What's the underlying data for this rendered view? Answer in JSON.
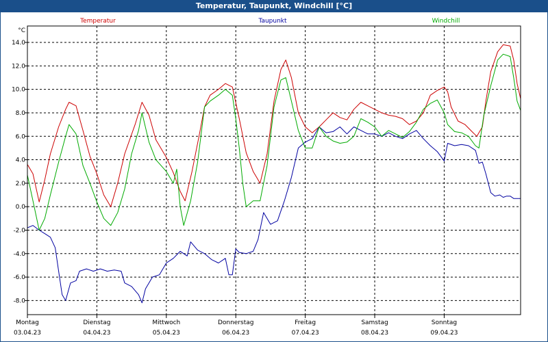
{
  "window": {
    "title": "Temperatur, Taupunkt, Windchill [°C]"
  },
  "chart_data": {
    "type": "line",
    "title": "Temperatur, Taupunkt, Windchill [°C]",
    "ylabel": "°C",
    "ylim": [
      -9.2,
      15.4
    ],
    "yticks": [
      14.0,
      12.0,
      10.0,
      8.0,
      6.0,
      4.0,
      2.0,
      0.0,
      -2.0,
      -4.0,
      -6.0,
      -8.0
    ],
    "ytick_labels": [
      "14.0",
      "12.0",
      "10.0",
      "8.0",
      "6.0",
      "4.0",
      "2.0",
      "0.0",
      "-2.0",
      "-4.0",
      "-6.0",
      "-8.0"
    ],
    "xlim": [
      0,
      7.1
    ],
    "grid": true,
    "days": [
      {
        "name": "Montag",
        "date": "03.04.23",
        "x": 0
      },
      {
        "name": "Dienstag",
        "date": "04.04.23",
        "x": 1
      },
      {
        "name": "Mittwoch",
        "date": "05.04.23",
        "x": 2
      },
      {
        "name": "Donnerstag",
        "date": "06.04.23",
        "x": 3
      },
      {
        "name": "Freitag",
        "date": "07.04.23",
        "x": 4
      },
      {
        "name": "Samstag",
        "date": "08.04.23",
        "x": 5
      },
      {
        "name": "Sonntag",
        "date": "09.04.23",
        "x": 6
      }
    ],
    "series": [
      {
        "name": "Temperatur",
        "color": "#cc0000",
        "points": [
          [
            0.0,
            3.6
          ],
          [
            0.08,
            2.8
          ],
          [
            0.17,
            0.4
          ],
          [
            0.25,
            2.3
          ],
          [
            0.33,
            4.5
          ],
          [
            0.45,
            6.8
          ],
          [
            0.55,
            8.3
          ],
          [
            0.6,
            8.9
          ],
          [
            0.7,
            8.6
          ],
          [
            0.8,
            6.5
          ],
          [
            0.9,
            4.3
          ],
          [
            1.0,
            2.8
          ],
          [
            1.1,
            1.0
          ],
          [
            1.2,
            0.0
          ],
          [
            1.3,
            2.0
          ],
          [
            1.4,
            4.5
          ],
          [
            1.55,
            7.0
          ],
          [
            1.65,
            8.9
          ],
          [
            1.75,
            7.8
          ],
          [
            1.85,
            5.7
          ],
          [
            2.0,
            4.2
          ],
          [
            2.1,
            2.9
          ],
          [
            2.2,
            1.3
          ],
          [
            2.27,
            0.5
          ],
          [
            2.37,
            3.0
          ],
          [
            2.47,
            6.0
          ],
          [
            2.55,
            8.5
          ],
          [
            2.63,
            9.5
          ],
          [
            2.75,
            10.0
          ],
          [
            2.85,
            10.5
          ],
          [
            2.95,
            10.2
          ],
          [
            3.05,
            7.5
          ],
          [
            3.15,
            4.6
          ],
          [
            3.25,
            3.0
          ],
          [
            3.35,
            2.0
          ],
          [
            3.45,
            4.5
          ],
          [
            3.55,
            9.0
          ],
          [
            3.65,
            11.7
          ],
          [
            3.72,
            12.5
          ],
          [
            3.8,
            11.0
          ],
          [
            3.9,
            8.0
          ],
          [
            4.0,
            6.8
          ],
          [
            4.1,
            6.3
          ],
          [
            4.2,
            6.8
          ],
          [
            4.3,
            7.4
          ],
          [
            4.4,
            8.0
          ],
          [
            4.5,
            7.6
          ],
          [
            4.6,
            7.4
          ],
          [
            4.7,
            8.3
          ],
          [
            4.8,
            8.9
          ],
          [
            4.9,
            8.6
          ],
          [
            5.0,
            8.3
          ],
          [
            5.1,
            8.0
          ],
          [
            5.2,
            7.8
          ],
          [
            5.3,
            7.7
          ],
          [
            5.4,
            7.5
          ],
          [
            5.5,
            7.0
          ],
          [
            5.6,
            7.3
          ],
          [
            5.7,
            8.0
          ],
          [
            5.8,
            9.5
          ],
          [
            5.9,
            9.9
          ],
          [
            6.0,
            10.2
          ],
          [
            6.05,
            9.8
          ],
          [
            6.1,
            8.5
          ],
          [
            6.2,
            7.3
          ],
          [
            6.3,
            7.0
          ],
          [
            6.4,
            6.4
          ],
          [
            6.47,
            6.0
          ],
          [
            6.55,
            6.8
          ],
          [
            6.6,
            9.0
          ],
          [
            6.67,
            11.5
          ],
          [
            6.77,
            13.2
          ],
          [
            6.85,
            13.8
          ],
          [
            6.95,
            13.7
          ],
          [
            7.0,
            12.5
          ],
          [
            7.05,
            10.5
          ],
          [
            7.1,
            9.2
          ]
        ]
      },
      {
        "name": "Taupunkt",
        "color": "#0000a0",
        "points": [
          [
            0.0,
            -1.8
          ],
          [
            0.08,
            -1.6
          ],
          [
            0.17,
            -2.0
          ],
          [
            0.25,
            -2.3
          ],
          [
            0.33,
            -2.6
          ],
          [
            0.4,
            -3.5
          ],
          [
            0.45,
            -5.5
          ],
          [
            0.5,
            -7.5
          ],
          [
            0.55,
            -8.0
          ],
          [
            0.62,
            -6.5
          ],
          [
            0.7,
            -6.3
          ],
          [
            0.75,
            -5.5
          ],
          [
            0.85,
            -5.3
          ],
          [
            0.95,
            -5.5
          ],
          [
            1.05,
            -5.3
          ],
          [
            1.15,
            -5.5
          ],
          [
            1.25,
            -5.4
          ],
          [
            1.35,
            -5.5
          ],
          [
            1.4,
            -6.5
          ],
          [
            1.5,
            -6.8
          ],
          [
            1.6,
            -7.5
          ],
          [
            1.65,
            -8.2
          ],
          [
            1.7,
            -7.0
          ],
          [
            1.8,
            -6.0
          ],
          [
            1.9,
            -5.8
          ],
          [
            2.0,
            -4.8
          ],
          [
            2.1,
            -4.4
          ],
          [
            2.2,
            -3.8
          ],
          [
            2.3,
            -4.2
          ],
          [
            2.35,
            -3.0
          ],
          [
            2.45,
            -3.7
          ],
          [
            2.55,
            -4.0
          ],
          [
            2.65,
            -4.5
          ],
          [
            2.75,
            -4.8
          ],
          [
            2.85,
            -4.4
          ],
          [
            2.9,
            -5.8
          ],
          [
            2.95,
            -5.8
          ],
          [
            3.0,
            -3.6
          ],
          [
            3.05,
            -3.9
          ],
          [
            3.15,
            -4.0
          ],
          [
            3.25,
            -3.8
          ],
          [
            3.32,
            -2.8
          ],
          [
            3.4,
            -0.5
          ],
          [
            3.5,
            -1.5
          ],
          [
            3.6,
            -1.2
          ],
          [
            3.7,
            0.5
          ],
          [
            3.8,
            2.5
          ],
          [
            3.9,
            5.0
          ],
          [
            4.0,
            5.5
          ],
          [
            4.1,
            5.8
          ],
          [
            4.2,
            6.8
          ],
          [
            4.3,
            6.3
          ],
          [
            4.4,
            6.4
          ],
          [
            4.5,
            6.8
          ],
          [
            4.6,
            6.2
          ],
          [
            4.7,
            6.8
          ],
          [
            4.8,
            6.5
          ],
          [
            4.9,
            6.2
          ],
          [
            5.0,
            6.2
          ],
          [
            5.1,
            6.0
          ],
          [
            5.2,
            6.3
          ],
          [
            5.3,
            6.0
          ],
          [
            5.4,
            5.8
          ],
          [
            5.5,
            6.2
          ],
          [
            5.6,
            6.5
          ],
          [
            5.7,
            5.8
          ],
          [
            5.8,
            5.2
          ],
          [
            5.9,
            4.7
          ],
          [
            6.0,
            3.9
          ],
          [
            6.05,
            5.4
          ],
          [
            6.15,
            5.2
          ],
          [
            6.25,
            5.3
          ],
          [
            6.35,
            5.2
          ],
          [
            6.45,
            4.8
          ],
          [
            6.5,
            3.7
          ],
          [
            6.55,
            3.8
          ],
          [
            6.6,
            2.8
          ],
          [
            6.67,
            1.2
          ],
          [
            6.73,
            0.9
          ],
          [
            6.8,
            1.0
          ],
          [
            6.85,
            0.8
          ],
          [
            6.9,
            0.9
          ],
          [
            6.95,
            0.9
          ],
          [
            7.0,
            0.7
          ],
          [
            7.1,
            0.7
          ]
        ]
      },
      {
        "name": "Windchill",
        "color": "#00aa00",
        "points": [
          [
            0.0,
            2.7
          ],
          [
            0.08,
            0.5
          ],
          [
            0.17,
            -2.0
          ],
          [
            0.25,
            -1.0
          ],
          [
            0.33,
            1.0
          ],
          [
            0.45,
            3.8
          ],
          [
            0.55,
            6.0
          ],
          [
            0.6,
            7.0
          ],
          [
            0.7,
            6.2
          ],
          [
            0.8,
            3.5
          ],
          [
            0.9,
            2.0
          ],
          [
            1.0,
            0.4
          ],
          [
            1.1,
            -1.0
          ],
          [
            1.2,
            -1.6
          ],
          [
            1.3,
            -0.5
          ],
          [
            1.4,
            1.5
          ],
          [
            1.5,
            4.5
          ],
          [
            1.6,
            6.5
          ],
          [
            1.65,
            8.0
          ],
          [
            1.75,
            5.5
          ],
          [
            1.85,
            4.0
          ],
          [
            2.0,
            3.0
          ],
          [
            2.1,
            2.0
          ],
          [
            2.15,
            3.2
          ],
          [
            2.2,
            0.0
          ],
          [
            2.25,
            -1.6
          ],
          [
            2.35,
            0.5
          ],
          [
            2.45,
            3.8
          ],
          [
            2.55,
            8.5
          ],
          [
            2.63,
            9.0
          ],
          [
            2.75,
            9.5
          ],
          [
            2.85,
            10.0
          ],
          [
            2.95,
            9.5
          ],
          [
            3.0,
            7.5
          ],
          [
            3.05,
            5.0
          ],
          [
            3.1,
            2.0
          ],
          [
            3.15,
            0.0
          ],
          [
            3.25,
            0.5
          ],
          [
            3.35,
            0.5
          ],
          [
            3.45,
            3.5
          ],
          [
            3.55,
            8.5
          ],
          [
            3.65,
            10.8
          ],
          [
            3.72,
            11.0
          ],
          [
            3.8,
            9.0
          ],
          [
            3.9,
            6.5
          ],
          [
            4.0,
            5.0
          ],
          [
            4.1,
            5.0
          ],
          [
            4.2,
            6.8
          ],
          [
            4.3,
            6.0
          ],
          [
            4.4,
            5.6
          ],
          [
            4.5,
            5.4
          ],
          [
            4.6,
            5.5
          ],
          [
            4.7,
            6.0
          ],
          [
            4.8,
            7.5
          ],
          [
            4.9,
            7.2
          ],
          [
            5.0,
            6.8
          ],
          [
            5.1,
            6.0
          ],
          [
            5.2,
            6.5
          ],
          [
            5.3,
            6.2
          ],
          [
            5.4,
            5.9
          ],
          [
            5.5,
            6.4
          ],
          [
            5.6,
            7.2
          ],
          [
            5.7,
            8.3
          ],
          [
            5.8,
            8.8
          ],
          [
            5.9,
            9.1
          ],
          [
            6.0,
            8.0
          ],
          [
            6.05,
            7.0
          ],
          [
            6.15,
            6.4
          ],
          [
            6.25,
            6.3
          ],
          [
            6.35,
            6.0
          ],
          [
            6.45,
            5.2
          ],
          [
            6.5,
            5.0
          ],
          [
            6.57,
            7.8
          ],
          [
            6.67,
            10.3
          ],
          [
            6.77,
            12.5
          ],
          [
            6.85,
            13.0
          ],
          [
            6.95,
            12.8
          ],
          [
            7.0,
            11.0
          ],
          [
            7.05,
            9.0
          ],
          [
            7.1,
            8.2
          ]
        ]
      }
    ]
  }
}
